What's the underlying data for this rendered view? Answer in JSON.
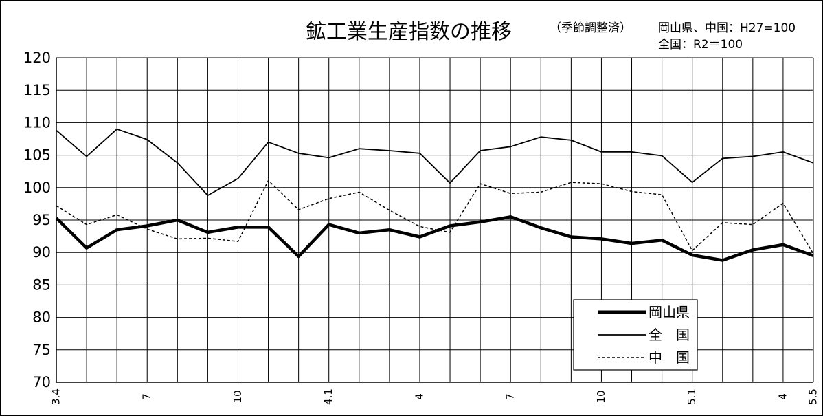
{
  "chart_data": {
    "type": "line",
    "title": "鉱工業生産指数の推移",
    "subtitle": "（季節調整済）",
    "base_note_1": "岡山県、中国：H27=100",
    "base_note_2": "全国：R2＝100",
    "xlabel": "",
    "ylabel": "",
    "ylim": [
      70,
      120
    ],
    "yticks": [
      "120",
      "115",
      "110",
      "105",
      "100",
      "95",
      "90",
      "85",
      "80",
      "75",
      "70"
    ],
    "x_tick_labels": [
      {
        "index": 0,
        "label": "3.4"
      },
      {
        "index": 3,
        "label": "7"
      },
      {
        "index": 6,
        "label": "10"
      },
      {
        "index": 9,
        "label": "4.1"
      },
      {
        "index": 12,
        "label": "4"
      },
      {
        "index": 15,
        "label": "7"
      },
      {
        "index": 18,
        "label": "10"
      },
      {
        "index": 21,
        "label": "5.1"
      },
      {
        "index": 24,
        "label": "4"
      },
      {
        "index": 25,
        "label": "5.5"
      }
    ],
    "series": [
      {
        "name": "岡山県",
        "style": "bold",
        "values": [
          95.3,
          90.7,
          93.5,
          94.1,
          95.0,
          93.1,
          93.9,
          93.9,
          89.4,
          94.3,
          93.0,
          93.5,
          92.4,
          94.1,
          94.7,
          95.5,
          93.8,
          92.4,
          92.1,
          91.4,
          91.9,
          89.6,
          88.8,
          90.4,
          91.2,
          89.5
        ]
      },
      {
        "name": "全　国",
        "style": "solid",
        "values": [
          108.8,
          104.8,
          109.0,
          107.4,
          103.8,
          98.8,
          101.4,
          107.0,
          105.3,
          104.6,
          106.0,
          105.7,
          105.3,
          100.7,
          105.7,
          106.3,
          107.8,
          107.3,
          105.5,
          105.5,
          104.9,
          100.8,
          104.5,
          104.8,
          105.5,
          103.8
        ]
      },
      {
        "name": "中　国",
        "style": "dashed",
        "values": [
          97.2,
          94.3,
          95.8,
          93.6,
          92.1,
          92.2,
          91.7,
          101.1,
          96.6,
          98.3,
          99.3,
          96.5,
          94.0,
          93.1,
          100.6,
          99.1,
          99.3,
          100.8,
          100.6,
          99.4,
          98.9,
          90.3,
          94.6,
          94.3,
          97.6,
          89.8
        ]
      }
    ],
    "grid": true,
    "legend_position": "bottom-right"
  },
  "colors": {
    "line": "#000000",
    "grid": "#000000",
    "background": "#ffffff"
  }
}
